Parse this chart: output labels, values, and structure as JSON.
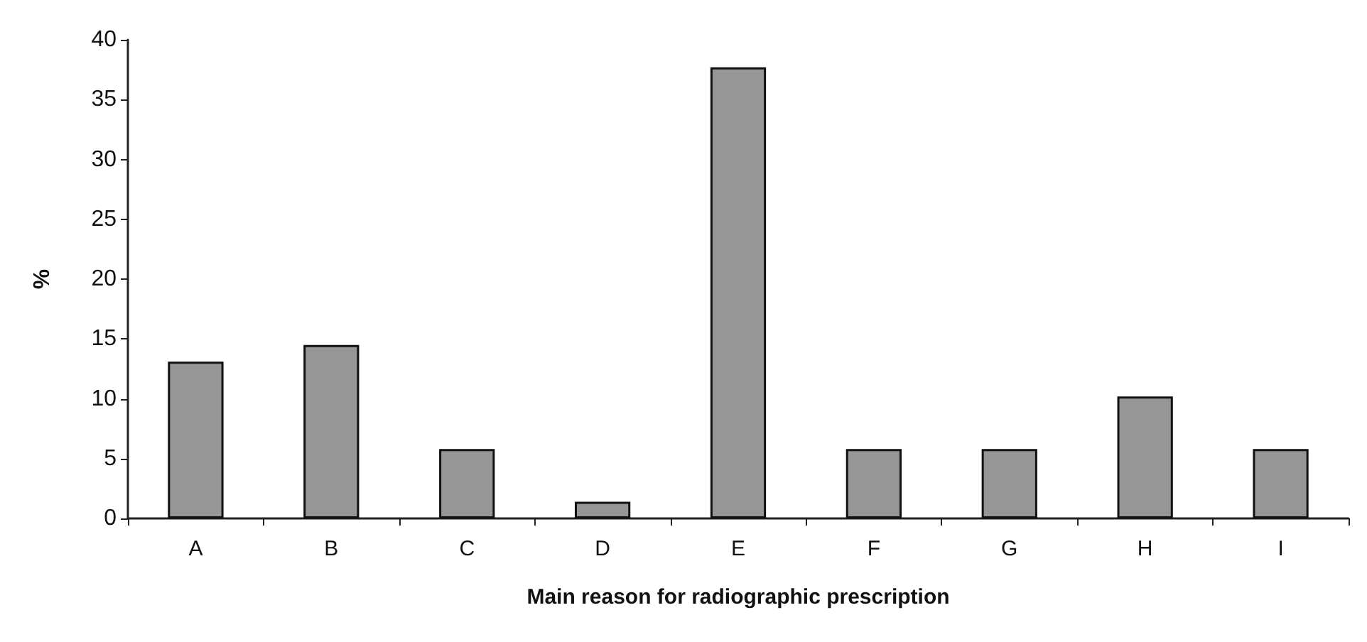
{
  "chart_data": {
    "type": "bar",
    "xlabel": "Main reason for radiographic prescription",
    "ylabel": "%",
    "categories": [
      "A",
      "B",
      "C",
      "D",
      "E",
      "F",
      "G",
      "H",
      "I"
    ],
    "values": [
      13.1,
      14.5,
      5.8,
      1.4,
      37.7,
      5.8,
      5.8,
      10.2,
      5.8
    ],
    "color": "#969696",
    "ylim": [
      0,
      40
    ],
    "yticks": [
      0,
      5,
      10,
      15,
      20,
      25,
      30,
      35,
      40
    ],
    "grid": false
  }
}
